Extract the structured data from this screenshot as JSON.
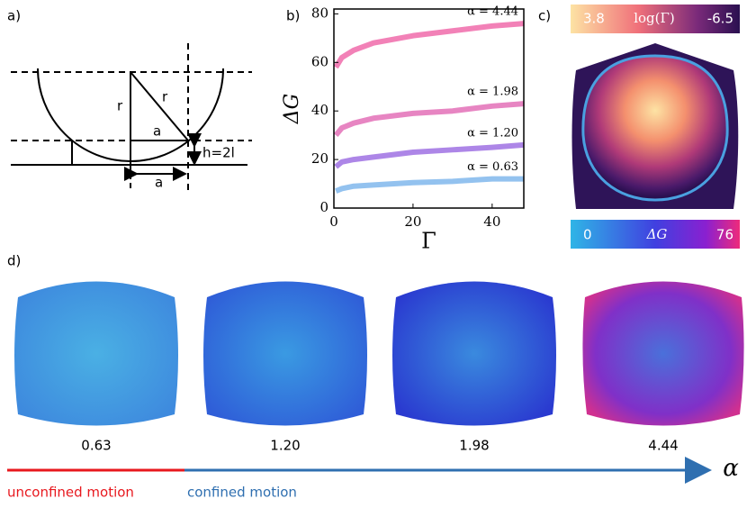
{
  "panels": {
    "a": {
      "label": "a)",
      "texts": [
        "r",
        "r",
        "a",
        "h=2l",
        "a"
      ]
    },
    "b": {
      "label": "b)"
    },
    "c": {
      "label": "c)",
      "top_bar": [
        "3.8",
        "log(Γ)",
        "-6.5"
      ],
      "bottom_bar": [
        "0",
        "ΔG",
        "76"
      ]
    },
    "d": {
      "label": "d)",
      "alphas": [
        "0.63",
        "1.20",
        "1.98",
        "4.44"
      ],
      "axis_symbol": "α",
      "left_label": "unconfined motion",
      "right_label": "confined motion"
    }
  },
  "chart_data": {
    "type": "line",
    "xlabel": "Γ",
    "ylabel": "ΔG",
    "x": [
      0.5,
      2,
      5,
      10,
      20,
      30,
      40,
      48
    ],
    "series": [
      {
        "name": "α = 4.44",
        "color": "#e8197c",
        "values": [
          58,
          62,
          65,
          68,
          71,
          73,
          75,
          76
        ]
      },
      {
        "name": "α = 1.98",
        "color": "#d3208f",
        "values": [
          30,
          33,
          35,
          37,
          39,
          40,
          42,
          43
        ]
      },
      {
        "name": "α = 1.20",
        "color": "#6a22d4",
        "values": [
          17,
          19,
          20,
          21,
          23,
          24,
          25,
          26
        ]
      },
      {
        "name": "α = 0.63",
        "color": "#3a90e2",
        "values": [
          7,
          8,
          9,
          9.5,
          10.5,
          11,
          12,
          12
        ]
      }
    ],
    "xlim": [
      0,
      48
    ],
    "ylim": [
      0,
      82
    ],
    "xticks": [
      0,
      20,
      40
    ],
    "yticks": [
      0,
      20,
      40,
      60,
      80
    ]
  }
}
